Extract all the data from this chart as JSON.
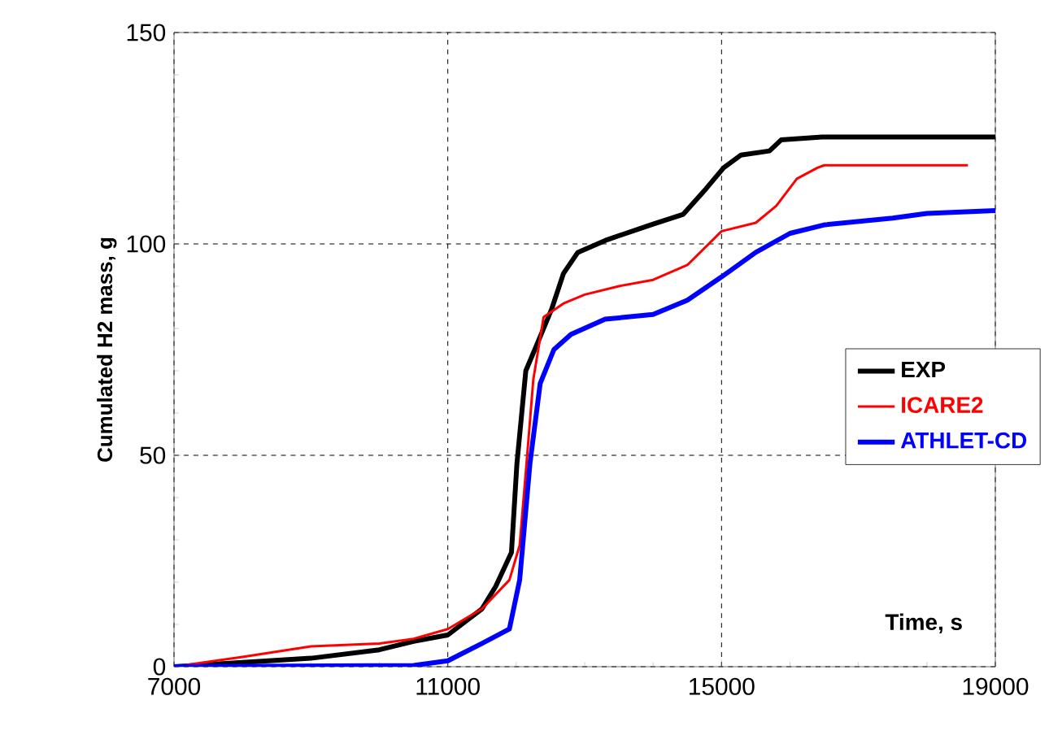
{
  "chart_data": {
    "type": "line",
    "xlabel": "Time, s",
    "ylabel": "Cumulated H2 mass, g",
    "xlim": [
      7000,
      19000
    ],
    "ylim": [
      0,
      150
    ],
    "xticks": [
      7000,
      11000,
      15000,
      19000
    ],
    "yticks": [
      0,
      50,
      100,
      150
    ],
    "grid": true,
    "legend": "right",
    "line_style": "solid",
    "marker": "none",
    "series": [
      {
        "name": "EXP",
        "color": "#000000",
        "x": [
          7000,
          9000,
          10000,
          10500,
          11000,
          11500,
          11700,
          11930,
          12010,
          12140,
          12310,
          12520,
          12690,
          12900,
          13330,
          14000,
          14440,
          14770,
          15030,
          15280,
          15700,
          15870,
          16470,
          19000
        ],
        "values": [
          0,
          2,
          4,
          6,
          7.5,
          13.7,
          19,
          27,
          48,
          70,
          76.5,
          84.7,
          93,
          98,
          101,
          104.7,
          107,
          113,
          118,
          121,
          122,
          124.6,
          125.3,
          125.3
        ]
      },
      {
        "name": "ICARE2",
        "color": "#ff0000",
        "x": [
          7000,
          8000,
          9000,
          10000,
          10500,
          11000,
          11500,
          11900,
          12050,
          12150,
          12250,
          12400,
          12700,
          13000,
          13500,
          14000,
          14500,
          15000,
          15500,
          15800,
          16100,
          16400,
          16500,
          18600
        ],
        "values": [
          0,
          2.3,
          4.8,
          5.5,
          6.6,
          8.9,
          13.7,
          20.5,
          28.7,
          48,
          68,
          82.7,
          86,
          88,
          90,
          91.5,
          95,
          103,
          105,
          109,
          115.4,
          118,
          118.6,
          118.6
        ]
      },
      {
        "name": "ATHLET-CD",
        "color": "#0000ff",
        "x": [
          7000,
          10500,
          11000,
          11500,
          11900,
          12050,
          12200,
          12350,
          12550,
          12800,
          13300,
          14000,
          14500,
          15000,
          15500,
          16000,
          16500,
          17500,
          18000,
          19000
        ],
        "values": [
          0,
          0.3,
          1.4,
          5.5,
          8.9,
          20.5,
          48,
          67,
          75,
          78.6,
          82.2,
          83.3,
          86.7,
          92.2,
          98,
          102.5,
          104.5,
          106.1,
          107.2,
          107.9
        ]
      }
    ]
  }
}
